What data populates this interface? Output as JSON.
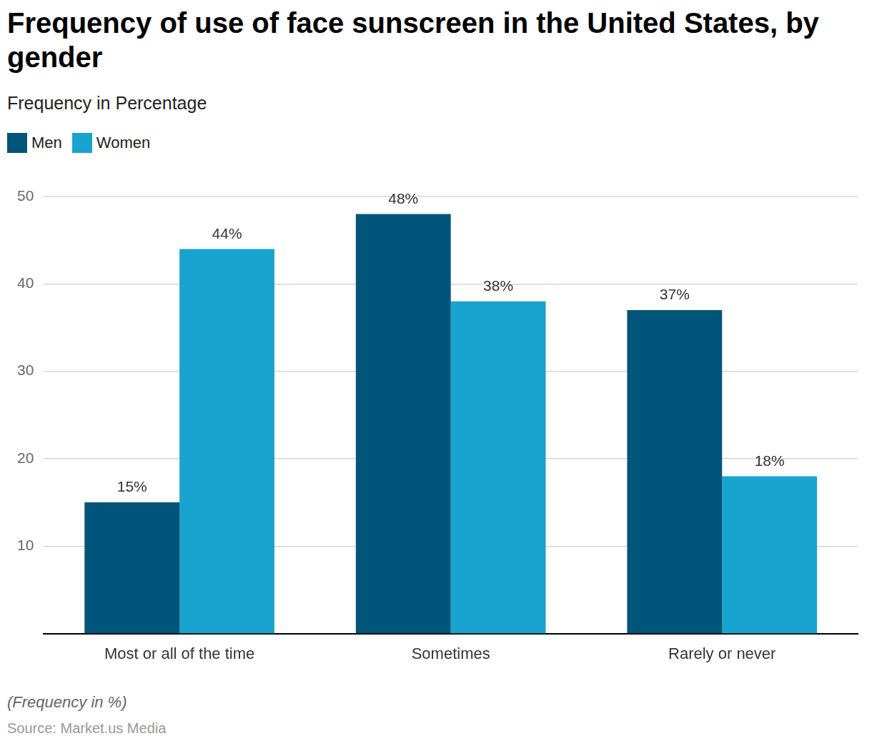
{
  "chart_data": {
    "type": "bar",
    "title": "Frequency of use of face sunscreen in the United States, by gender",
    "subtitle": "Frequency in Percentage",
    "note": "(Frequency in %)",
    "source": "Source: Market.us Media",
    "categories": [
      "Most or all of the time",
      "Sometimes",
      "Rarely or never"
    ],
    "series": [
      {
        "name": "Men",
        "color": "#01547a",
        "values": [
          15,
          48,
          37
        ],
        "value_labels": [
          "15%",
          "48%",
          "37%"
        ]
      },
      {
        "name": "Women",
        "color": "#19a3cf",
        "values": [
          44,
          38,
          18
        ],
        "value_labels": [
          "44%",
          "38%",
          "18%"
        ]
      }
    ],
    "ylim": [
      0,
      50
    ],
    "yticks": [
      10,
      20,
      30,
      40,
      50
    ],
    "grid": true,
    "legend": "top-left",
    "data_labels": true
  }
}
